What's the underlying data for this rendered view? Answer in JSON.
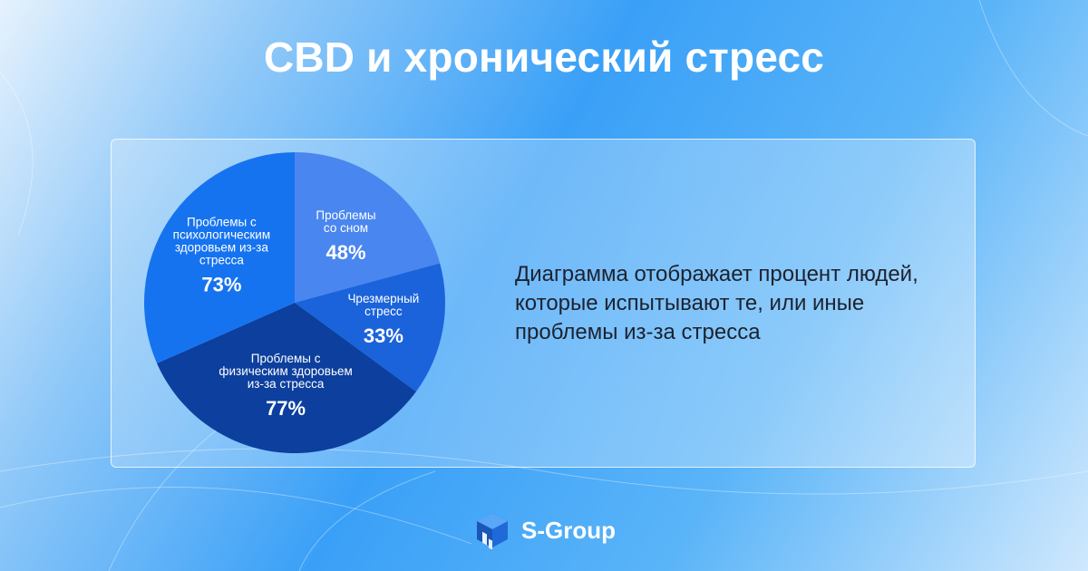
{
  "title": "CBD и хронический стресс",
  "description": "Диаграмма отображает процент людей, которые испытывают те, или иные проблемы из-за стресса",
  "brand": {
    "name": "S-Group",
    "icon": "cube-logo-icon"
  },
  "colors": {
    "accent": "#2b8ff5",
    "slices": [
      "#4a86ef",
      "#1b63db",
      "#0c3f9e",
      "#1673f0"
    ],
    "text": "#1d2230"
  },
  "chart_data": {
    "type": "pie",
    "slices": [
      {
        "label_lines": [
          "Проблемы",
          "со сном"
        ],
        "label": "Проблемы со сном",
        "value": 48,
        "value_label": "48%"
      },
      {
        "label_lines": [
          "Чрезмерный",
          "стресс"
        ],
        "label": "Чрезмерный стресс",
        "value": 33,
        "value_label": "33%"
      },
      {
        "label_lines": [
          "Проблемы с",
          "физическим здоровьем",
          "из-за стресса"
        ],
        "label": "Проблемы с физическим здоровьем из-за стресса",
        "value": 77,
        "value_label": "77%"
      },
      {
        "label_lines": [
          "Проблемы с",
          "психологическим",
          "здоровьем из-за",
          "стресса"
        ],
        "label": "Проблемы с психологическим здоровьем из-за стресса",
        "value": 73,
        "value_label": "73%"
      }
    ]
  }
}
